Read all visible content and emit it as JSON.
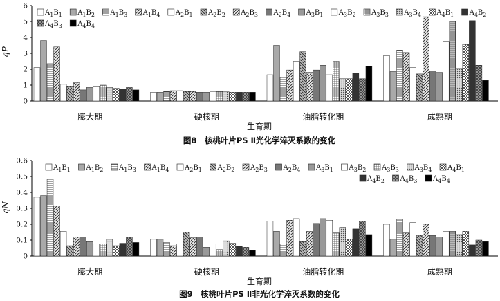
{
  "chart_data": [
    {
      "type": "bar",
      "title": "图8　核桃叶片PS Ⅱ光化学淬灭系数的变化",
      "xlabel": "生育期",
      "ylabel": "qP",
      "ylim": [
        0,
        6
      ],
      "yticks": [
        "0",
        "1",
        "2",
        "3",
        "4",
        "5",
        "6"
      ],
      "categories": [
        "膨大期",
        "硬核期",
        "油脂转化期",
        "成熟期"
      ],
      "series": [
        {
          "name": "A1B1",
          "values": [
            2.1,
            0.55,
            1.65,
            2.85
          ]
        },
        {
          "name": "A1B2",
          "values": [
            3.8,
            0.55,
            3.5,
            1.85
          ]
        },
        {
          "name": "A1B3",
          "values": [
            2.35,
            0.6,
            1.5,
            3.2
          ]
        },
        {
          "name": "A1B4",
          "values": [
            3.4,
            0.65,
            1.95,
            3.05
          ]
        },
        {
          "name": "A2B1",
          "values": [
            1.05,
            0.65,
            2.5,
            2.1
          ]
        },
        {
          "name": "A2B2",
          "values": [
            0.9,
            0.6,
            3.1,
            1.7
          ]
        },
        {
          "name": "A2B3",
          "values": [
            1.15,
            0.6,
            1.8,
            5.3
          ]
        },
        {
          "name": "A2B4",
          "values": [
            0.7,
            0.55,
            1.95,
            1.9
          ]
        },
        {
          "name": "A3B1",
          "values": [
            0.85,
            0.55,
            2.25,
            1.8
          ]
        },
        {
          "name": "A3B2",
          "values": [
            0.9,
            0.6,
            1.65,
            3.75
          ]
        },
        {
          "name": "A3B3",
          "values": [
            1.0,
            0.6,
            2.5,
            5.0
          ]
        },
        {
          "name": "A3B4",
          "values": [
            0.85,
            0.58,
            1.4,
            2.05
          ]
        },
        {
          "name": "A4B1",
          "values": [
            0.8,
            0.55,
            1.4,
            3.55
          ]
        },
        {
          "name": "A4B2",
          "values": [
            0.75,
            0.55,
            1.75,
            5.05
          ]
        },
        {
          "name": "A4B3",
          "values": [
            0.85,
            0.55,
            1.4,
            2.25
          ]
        },
        {
          "name": "A4B4",
          "values": [
            0.7,
            0.55,
            2.2,
            1.3
          ]
        }
      ]
    },
    {
      "type": "bar",
      "title": "图9　核桃叶片PS Ⅱ非光化学淬灭系数的变化",
      "xlabel": "生育期",
      "ylabel": "qN",
      "ylim": [
        0,
        0.6
      ],
      "yticks": [
        "0",
        "0.1",
        "0.2",
        "0.3",
        "0.4",
        "0.5",
        "0.6"
      ],
      "categories": [
        "膨大期",
        "硬核期",
        "油脂转化期",
        "成熟期"
      ],
      "series": [
        {
          "name": "A1B1",
          "values": [
            0.37,
            0.105,
            0.22,
            0.2
          ]
        },
        {
          "name": "A1B2",
          "values": [
            0.38,
            0.105,
            0.155,
            0.105
          ]
        },
        {
          "name": "A1B3",
          "values": [
            0.485,
            0.085,
            0.075,
            0.23
          ]
        },
        {
          "name": "A1B4",
          "values": [
            0.315,
            0.065,
            0.225,
            0.145
          ]
        },
        {
          "name": "A2B1",
          "values": [
            0.155,
            0.075,
            0.235,
            0.21
          ]
        },
        {
          "name": "A2B2",
          "values": [
            0.065,
            0.15,
            0.09,
            0.13
          ]
        },
        {
          "name": "A2B3",
          "values": [
            0.12,
            0.115,
            0.155,
            0.2
          ]
        },
        {
          "name": "A2B4",
          "values": [
            0.115,
            0.12,
            0.205,
            0.13
          ]
        },
        {
          "name": "A3B1",
          "values": [
            0.09,
            0.055,
            0.235,
            0.12
          ]
        },
        {
          "name": "A3B2",
          "values": [
            0.075,
            0.075,
            0.225,
            0.155
          ]
        },
        {
          "name": "A3B3",
          "values": [
            0.075,
            0.04,
            0.145,
            0.155
          ]
        },
        {
          "name": "A3B4",
          "values": [
            0.105,
            0.095,
            0.18,
            0.135
          ]
        },
        {
          "name": "A4B1",
          "values": [
            0.065,
            0.08,
            0.105,
            0.155
          ]
        },
        {
          "name": "A4B2",
          "values": [
            0.08,
            0.06,
            0.17,
            0.07
          ]
        },
        {
          "name": "A4B3",
          "values": [
            0.12,
            0.055,
            0.22,
            0.1
          ]
        },
        {
          "name": "A4B4",
          "values": [
            0.085,
            0.035,
            0.135,
            0.09
          ]
        }
      ]
    }
  ],
  "legend": {
    "labels": [
      "A1B1",
      "A1B2",
      "A1B3",
      "A1B4",
      "A2B1",
      "A2B2",
      "A2B3",
      "A2B4",
      "A3B1",
      "A3B2",
      "A3B3",
      "A3B4",
      "A4B1",
      "A4B2",
      "A4B3",
      "A4B4"
    ],
    "placement": "top"
  }
}
